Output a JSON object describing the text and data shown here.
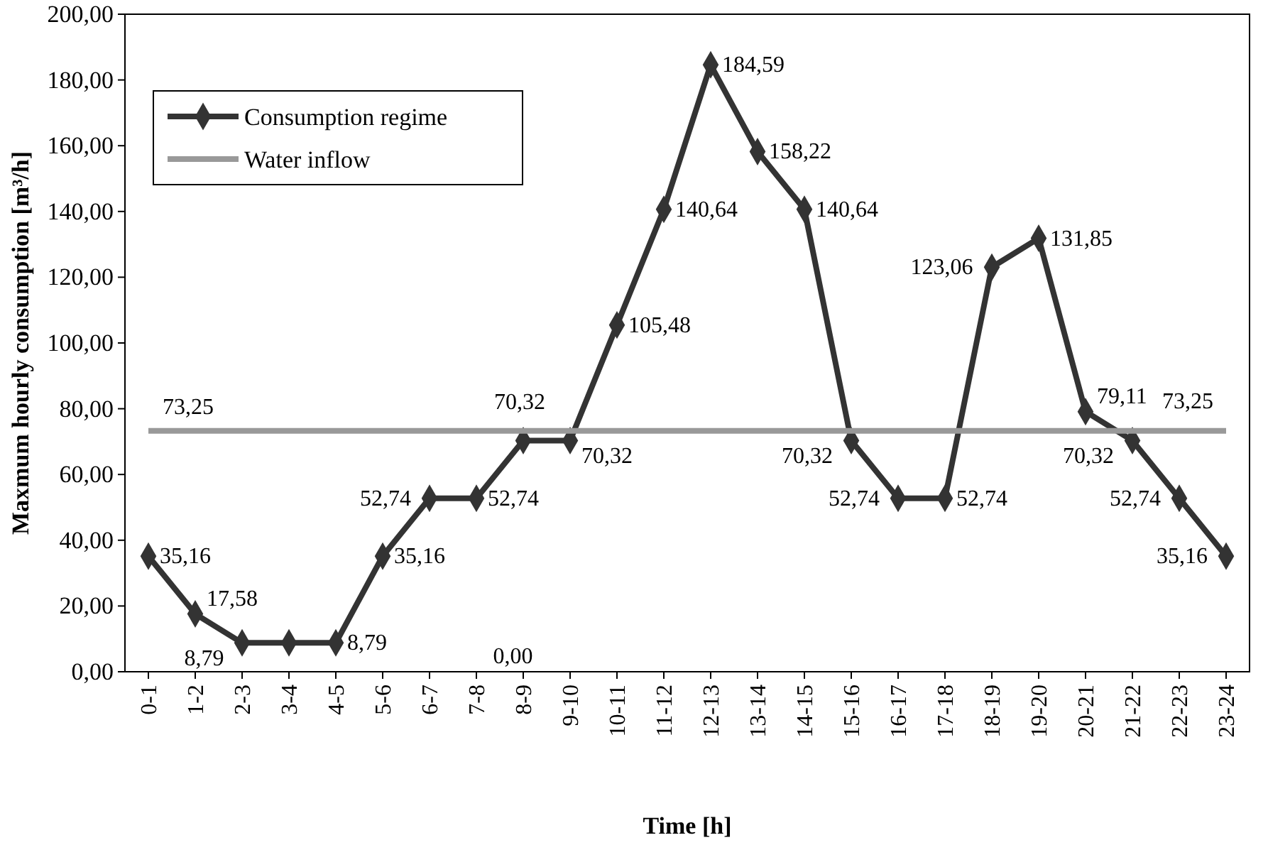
{
  "chart_data": {
    "type": "line",
    "xlabel": "Time [h]",
    "ylabel": "Maxmum hourly consumption  [m³/h]",
    "categories": [
      "0-1",
      "1-2",
      "2-3",
      "3-4",
      "4-5",
      "5-6",
      "6-7",
      "7-8",
      "8-9",
      "9-10",
      "10-11",
      "11-12",
      "12-13",
      "13-14",
      "14-15",
      "15-16",
      "16-17",
      "17-18",
      "18-19",
      "19-20",
      "20-21",
      "21-22",
      "22-23",
      "23-24"
    ],
    "series": [
      {
        "name": "Consumption regime",
        "color": "#333333",
        "marker": "diamond",
        "values": [
          35.16,
          17.58,
          8.79,
          8.79,
          8.79,
          35.16,
          52.74,
          52.74,
          70.32,
          70.32,
          105.48,
          140.64,
          184.59,
          158.22,
          140.64,
          70.32,
          52.74,
          52.74,
          123.06,
          131.85,
          79.11,
          70.32,
          52.74,
          35.16
        ],
        "value_labels": [
          "35,16",
          "17,58",
          "8,79",
          null,
          "8,79",
          "35,16",
          "52,74",
          "52,74",
          "70,32",
          "70,32",
          "105,48",
          "140,64",
          "184,59",
          "158,22",
          "140,64",
          "70,32",
          "52,74",
          "52,74",
          "123,06",
          "131,85",
          "79,11",
          "70,32",
          "52,74",
          "35,16"
        ]
      },
      {
        "name": "Water inflow",
        "color": "#999999",
        "marker": "none",
        "values": [
          73.25,
          73.25,
          73.25,
          73.25,
          73.25,
          73.25,
          73.25,
          73.25,
          73.25,
          73.25,
          73.25,
          73.25,
          73.25,
          73.25,
          73.25,
          73.25,
          73.25,
          73.25,
          73.25,
          73.25,
          73.25,
          73.25,
          73.25,
          73.25
        ],
        "value_labels": [
          "73,25",
          null,
          null,
          null,
          null,
          null,
          null,
          null,
          null,
          null,
          null,
          null,
          null,
          null,
          null,
          null,
          null,
          null,
          null,
          null,
          null,
          null,
          null,
          "73,25"
        ]
      }
    ],
    "annotations": [
      "0,00"
    ],
    "ylim": [
      0,
      200
    ],
    "yticks": [
      {
        "value": 0,
        "label": "0,00"
      },
      {
        "value": 20,
        "label": "20,00"
      },
      {
        "value": 40,
        "label": "40,00"
      },
      {
        "value": 60,
        "label": "60,00"
      },
      {
        "value": 80,
        "label": "80,00"
      },
      {
        "value": 100,
        "label": "100,00"
      },
      {
        "value": 120,
        "label": "120,00"
      },
      {
        "value": 140,
        "label": "140,00"
      },
      {
        "value": 160,
        "label": "160,00"
      },
      {
        "value": 180,
        "label": "180,00"
      },
      {
        "value": 200,
        "label": "200,00"
      }
    ],
    "grid": false,
    "legend": "top left",
    "line_style": "solid"
  }
}
